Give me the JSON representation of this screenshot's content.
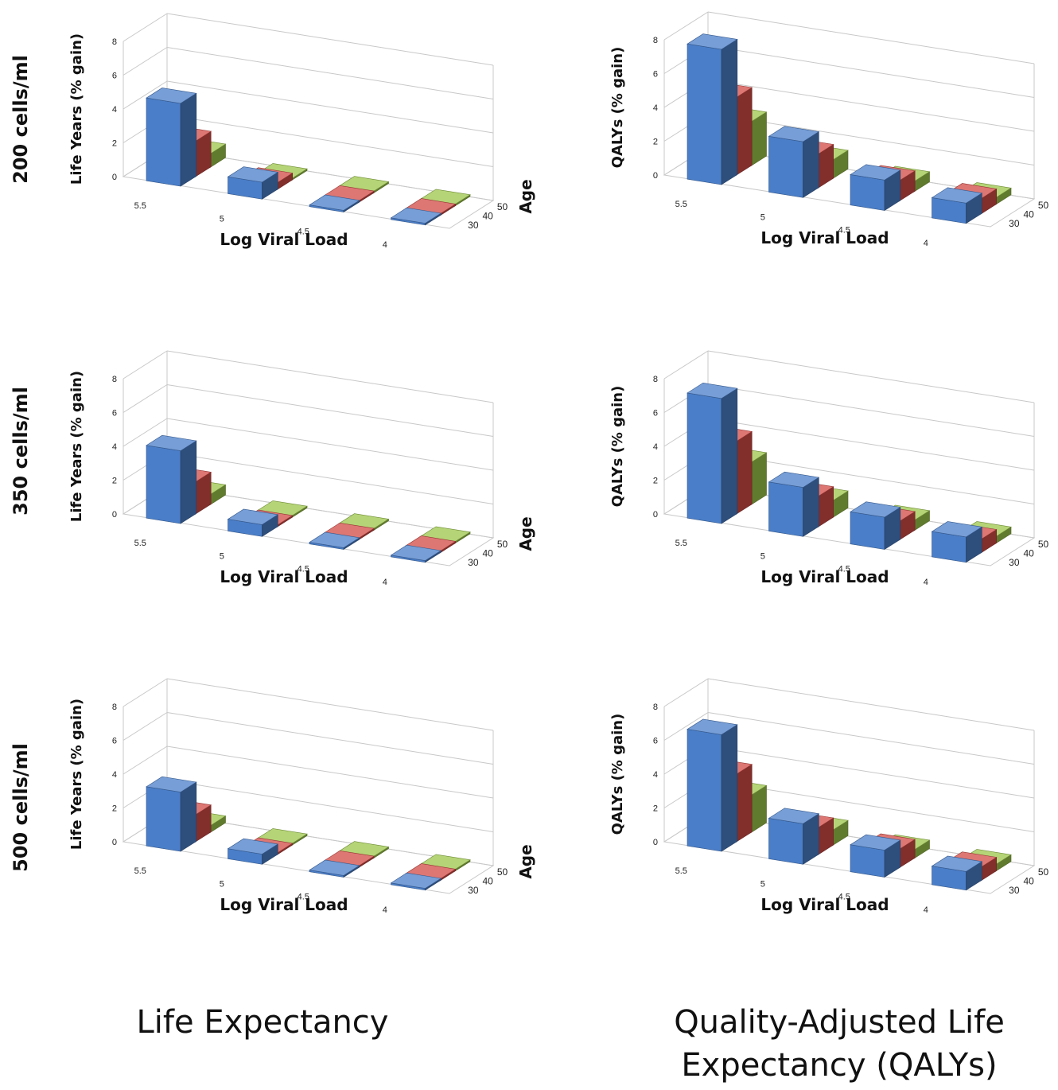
{
  "row_labels": [
    "200 cells/ml",
    "350 cells/ml",
    "500 cells/ml"
  ],
  "column_titles": {
    "left": "Life Expectancy",
    "right_line1": "Quality-Adjusted Life",
    "right_line2": "Expectancy (QALYs)"
  },
  "colors": {
    "age_30": "#4a7ec8",
    "age_40": "#d24a45",
    "age_50": "#9cc64a",
    "grid": "#c8c8c8"
  },
  "chart_data": [
    {
      "type": "bar3d",
      "panel": "200 cells/ml / Life Expectancy",
      "xlabel": "Log Viral Load",
      "ylabel": "Life Years (% gain)",
      "zlabel": "Age",
      "categories": [
        "5.5",
        "5",
        "4.5",
        "4"
      ],
      "y_ticks": [
        "0",
        "2",
        "4",
        "6",
        "8"
      ],
      "z_ticks": [
        "30",
        "40",
        "50"
      ],
      "ylim": [
        0,
        8
      ],
      "series": [
        {
          "name": "30",
          "values": [
            4.9,
            1.0,
            0.1,
            0.1
          ]
        },
        {
          "name": "40",
          "values": [
            2.1,
            0.4,
            0.1,
            0.1
          ]
        },
        {
          "name": "50",
          "values": [
            0.8,
            0.1,
            0.1,
            0.1
          ]
        }
      ]
    },
    {
      "type": "bar3d",
      "panel": "200 cells/ml / Quality-Adjusted Life Expectancy (QALYs)",
      "xlabel": "Log Viral Load",
      "ylabel": "QALYs (% gain)",
      "zlabel": "Age",
      "categories": [
        "5.5",
        "5",
        "4.5",
        "4"
      ],
      "y_ticks": [
        "0",
        "2",
        "4",
        "6",
        "8"
      ],
      "z_ticks": [
        "30",
        "40",
        "50"
      ],
      "ylim": [
        0,
        8
      ],
      "series": [
        {
          "name": "30",
          "values": [
            8.0,
            3.3,
            1.8,
            1.2
          ]
        },
        {
          "name": "40",
          "values": [
            4.6,
            2.0,
            1.2,
            0.9
          ]
        },
        {
          "name": "50",
          "values": [
            2.6,
            1.1,
            0.6,
            0.4
          ]
        }
      ]
    },
    {
      "type": "bar3d",
      "panel": "350 cells/ml / Life Expectancy",
      "xlabel": "Log Viral Load",
      "ylabel": "Life Years (% gain)",
      "zlabel": "Age",
      "categories": [
        "5.5",
        "5",
        "4.5",
        "4"
      ],
      "y_ticks": [
        "0",
        "2",
        "4",
        "6",
        "8"
      ],
      "z_ticks": [
        "30",
        "40",
        "50"
      ],
      "ylim": [
        0,
        8
      ],
      "series": [
        {
          "name": "30",
          "values": [
            4.3,
            0.7,
            0.1,
            0.1
          ]
        },
        {
          "name": "40",
          "values": [
            1.9,
            0.1,
            0.1,
            0.1
          ]
        },
        {
          "name": "50",
          "values": [
            0.6,
            0.1,
            0.1,
            0.1
          ]
        }
      ]
    },
    {
      "type": "bar3d",
      "panel": "350 cells/ml / Quality-Adjusted Life Expectancy (QALYs)",
      "xlabel": "Log Viral Load",
      "ylabel": "QALYs (% gain)",
      "zlabel": "Age",
      "categories": [
        "5.5",
        "5",
        "4.5",
        "4"
      ],
      "y_ticks": [
        "0",
        "2",
        "4",
        "6",
        "8"
      ],
      "z_ticks": [
        "30",
        "40",
        "50"
      ],
      "ylim": [
        0,
        8
      ],
      "series": [
        {
          "name": "30",
          "values": [
            7.4,
            2.9,
            1.9,
            1.5
          ]
        },
        {
          "name": "40",
          "values": [
            4.3,
            1.8,
            1.1,
            0.8
          ]
        },
        {
          "name": "50",
          "values": [
            2.5,
            1.0,
            0.6,
            0.4
          ]
        }
      ]
    },
    {
      "type": "bar3d",
      "panel": "500 cells/ml / Life Expectancy",
      "xlabel": "Log Viral Load",
      "ylabel": "Life Years (% gain)",
      "zlabel": "Age",
      "categories": [
        "5.5",
        "5",
        "4.5",
        "4"
      ],
      "y_ticks": [
        "0",
        "2",
        "4",
        "6",
        "8"
      ],
      "z_ticks": [
        "30",
        "40",
        "50"
      ],
      "ylim": [
        0,
        8
      ],
      "series": [
        {
          "name": "30",
          "values": [
            3.5,
            0.6,
            0.1,
            0.1
          ]
        },
        {
          "name": "40",
          "values": [
            1.6,
            0.1,
            0.1,
            0.1
          ]
        },
        {
          "name": "50",
          "values": [
            0.4,
            0.1,
            0.1,
            0.1
          ]
        }
      ]
    },
    {
      "type": "bar3d",
      "panel": "500 cells/ml / Quality-Adjusted Life Expectancy (QALYs)",
      "xlabel": "Log Viral Load",
      "ylabel": "QALYs (% gain)",
      "zlabel": "Age",
      "categories": [
        "5.5",
        "5",
        "4.5",
        "4"
      ],
      "y_ticks": [
        "0",
        "2",
        "4",
        "6",
        "8"
      ],
      "z_ticks": [
        "30",
        "40",
        "50"
      ],
      "ylim": [
        0,
        8
      ],
      "series": [
        {
          "name": "30",
          "values": [
            6.9,
            2.4,
            1.6,
            1.1
          ]
        },
        {
          "name": "40",
          "values": [
            4.0,
            1.6,
            1.1,
            0.8
          ]
        },
        {
          "name": "50",
          "values": [
            2.2,
            0.9,
            0.5,
            0.4
          ]
        }
      ]
    }
  ]
}
